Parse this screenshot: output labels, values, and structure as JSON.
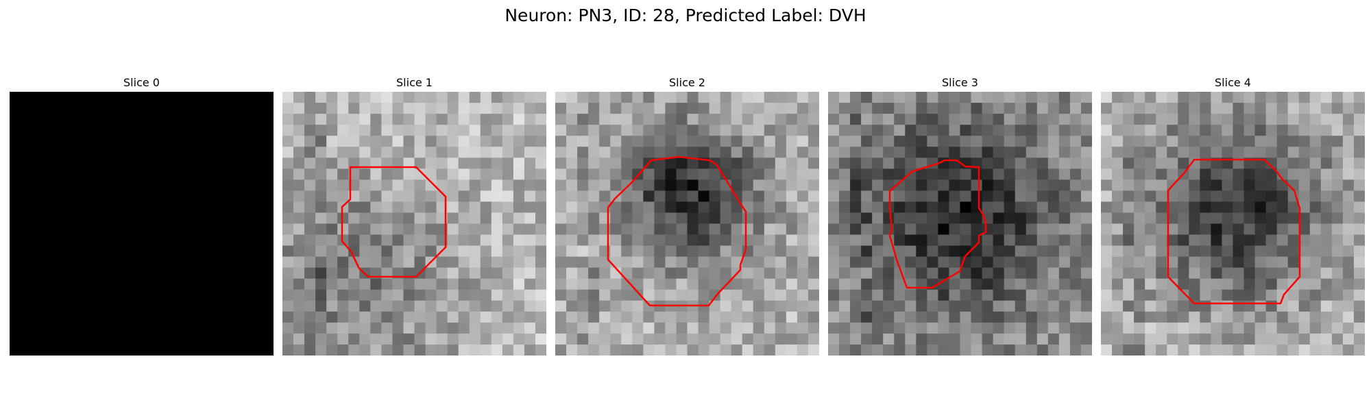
{
  "figure": {
    "title": "Neuron: PN3, ID: 28, Predicted Label: DVH",
    "slices": [
      {
        "title": "Slice 0",
        "blank": true,
        "seed": 0,
        "base": 0
      },
      {
        "title": "Slice 1",
        "blank": false,
        "seed": 11,
        "base": 185,
        "dark_center": [
          0.27,
          0.72
        ],
        "dark_strength": 60,
        "dark_r": 0.28
      },
      {
        "title": "Slice 2",
        "blank": false,
        "seed": 23,
        "base": 175,
        "dark_center": [
          0.51,
          0.38
        ],
        "dark_strength": 130,
        "dark_r": 0.18
      },
      {
        "title": "Slice 3",
        "blank": false,
        "seed": 37,
        "base": 150,
        "dark_center": [
          0.5,
          0.48
        ],
        "dark_strength": 110,
        "dark_r": 0.26
      },
      {
        "title": "Slice 4",
        "blank": false,
        "seed": 41,
        "base": 180,
        "dark_center": [
          0.52,
          0.45
        ],
        "dark_strength": 130,
        "dark_r": 0.24
      }
    ],
    "contour_color": "#ff0000"
  }
}
